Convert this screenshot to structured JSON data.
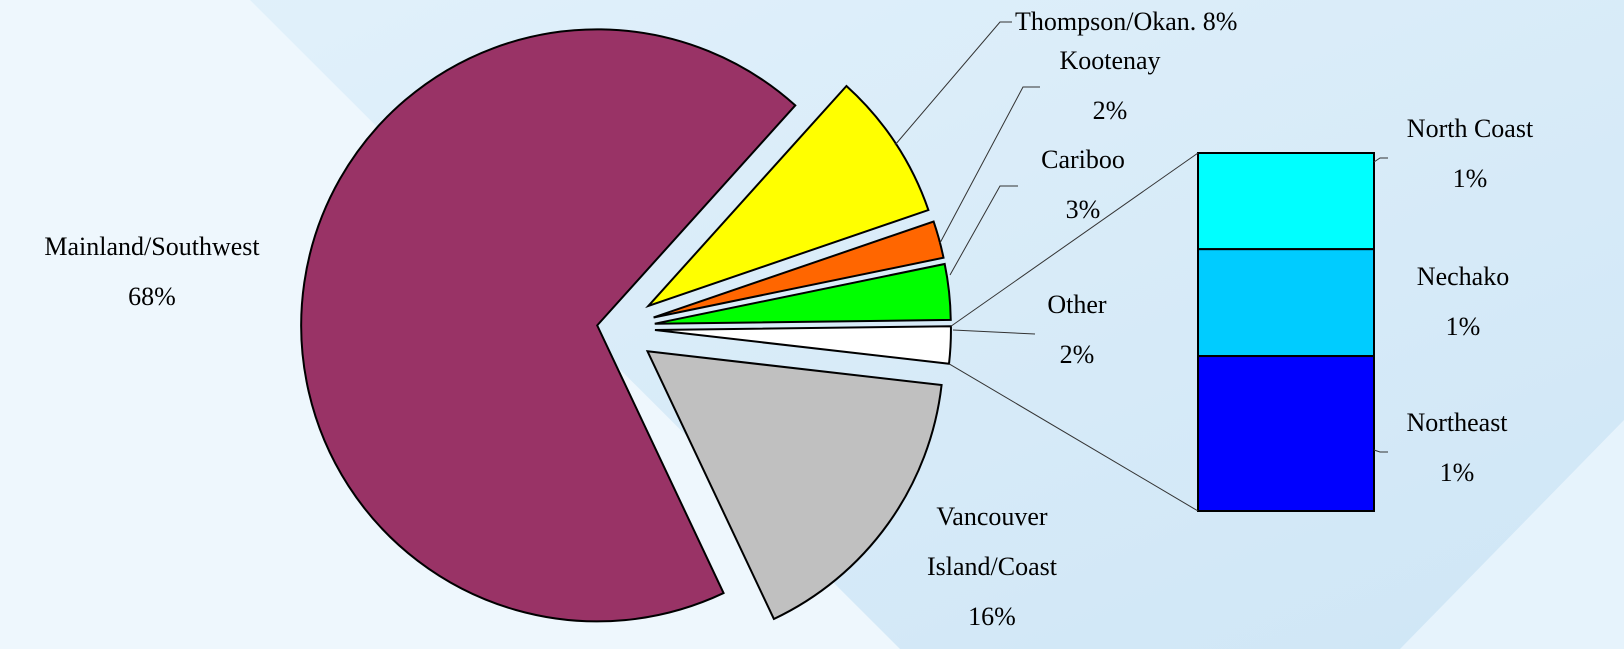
{
  "chart_data": {
    "type": "pie-of-bar",
    "categories": [
      "Thompson/Okan.",
      "Kootenay",
      "Cariboo",
      "Other",
      "Vancouver Island/Coast",
      "Mainland/Southwest"
    ],
    "values": [
      8,
      2,
      3,
      2,
      16,
      68
    ],
    "value_labels": [
      "8%",
      "2%",
      "3%",
      "2%",
      "16%",
      "68%"
    ],
    "colors": [
      "#ffff00",
      "#ff6600",
      "#00ff00",
      "#ffffff",
      "#c0c0c0",
      "#993366"
    ],
    "bar": {
      "categories": [
        "North Coast",
        "Nechako",
        "Northeast"
      ],
      "values": [
        0.54,
        0.6,
        0.87
      ],
      "value_labels": [
        "1%",
        "1%",
        "1%"
      ],
      "colors": [
        "#00ffff",
        "#00ccff",
        "#0000ff"
      ]
    }
  }
}
